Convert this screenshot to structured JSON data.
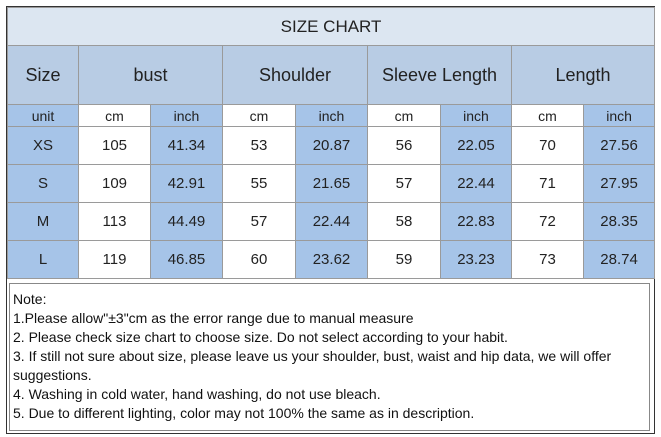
{
  "table": {
    "title": "SIZE CHART",
    "headers": [
      "Size",
      "bust",
      "Shoulder",
      "Sleeve Length",
      "Length"
    ],
    "units": [
      "unit",
      "cm",
      "inch",
      "cm",
      "inch",
      "cm",
      "inch",
      "cm",
      "inch"
    ],
    "rows": [
      [
        "XS",
        105,
        41.34,
        53,
        20.87,
        56,
        22.05,
        70,
        27.56
      ],
      [
        "S",
        109,
        42.91,
        55,
        21.65,
        57,
        22.44,
        71,
        27.95
      ],
      [
        "M",
        113,
        44.49,
        57,
        22.44,
        58,
        22.83,
        72,
        28.35
      ],
      [
        "L",
        119,
        46.85,
        60,
        23.62,
        59,
        23.23,
        73,
        28.74
      ]
    ]
  },
  "notes": {
    "title": "Note:",
    "lines": [
      "1.Please allow\"±3\"cm as the error range due to manual measure",
      "2. Please check size chart to choose size. Do not select according to your habit.",
      "3. If still not sure about size, please leave us your shoulder, bust, waist and hip data, we will offer suggestions.",
      "4. Washing in cold water, hand washing, do not use bleach.",
      "5. Due to different lighting, color may not 100% the same as in description."
    ]
  }
}
